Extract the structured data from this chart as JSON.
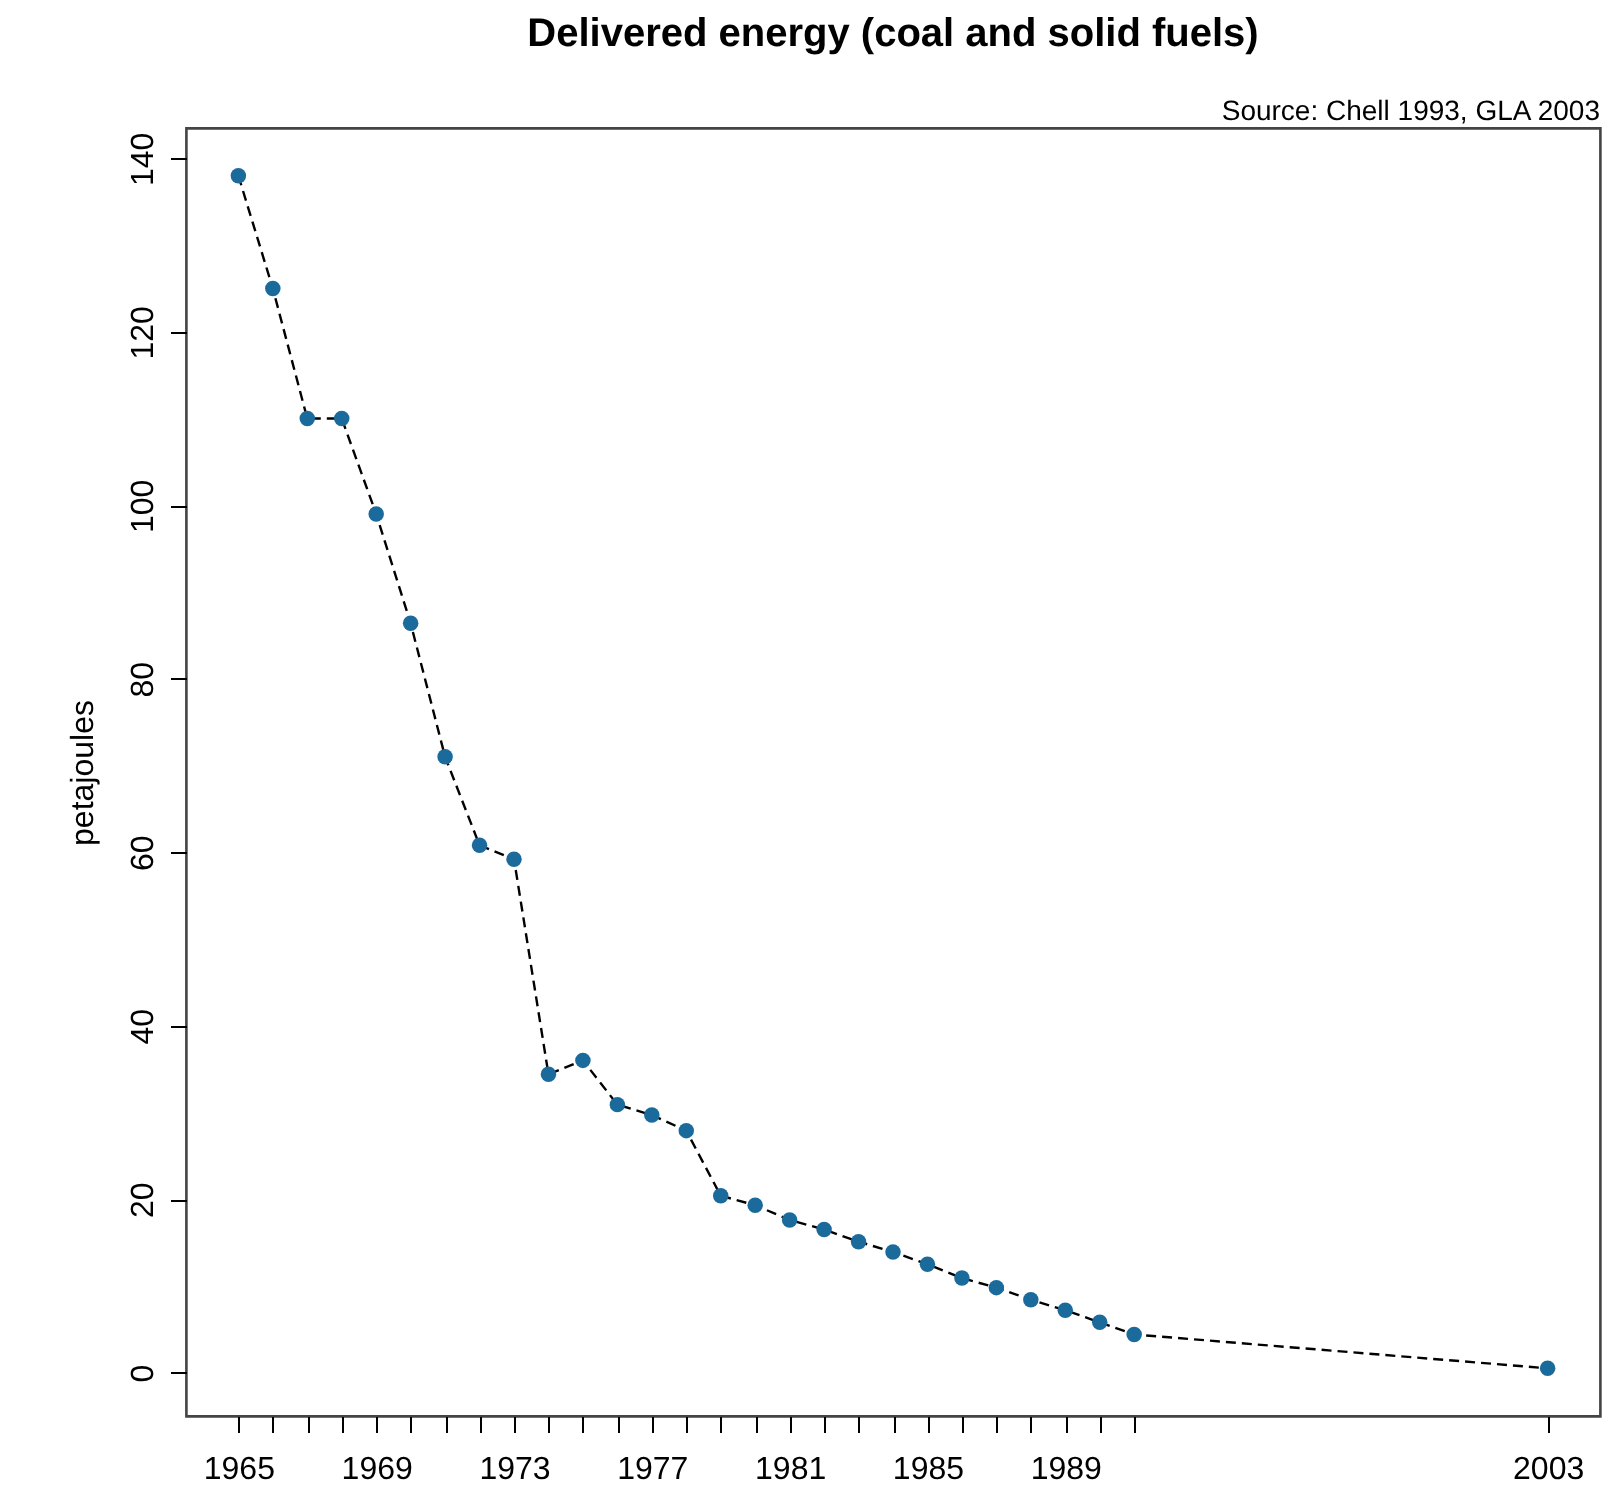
{
  "chart_data": {
    "type": "line",
    "title": "Delivered energy (coal and solid fuels)",
    "ylabel": "petajoules",
    "annotations": [
      "Source: Chell 1993, GLA 2003"
    ],
    "x": [
      1965,
      1966,
      1967,
      1968,
      1969,
      1970,
      1971,
      1972,
      1973,
      1974,
      1975,
      1976,
      1977,
      1978,
      1979,
      1980,
      1981,
      1982,
      1983,
      1984,
      1985,
      1986,
      1987,
      1988,
      1989,
      1990,
      1991,
      2003
    ],
    "series": [
      {
        "color": "#1b6a9c",
        "values": [
          138,
          125,
          110,
          110,
          99,
          86.4,
          71,
          60.8,
          59.2,
          34.4,
          36,
          30.9,
          29.7,
          27.9,
          20.4,
          19.3,
          17.6,
          16.5,
          15.1,
          13.9,
          12.5,
          10.9,
          9.8,
          8.4,
          7.2,
          5.8,
          4.4,
          0.5
        ]
      }
    ],
    "marker": "circle",
    "line_style": "dashed",
    "grid": false,
    "xlim": [
      1963.48,
      2004.52
    ],
    "ylim": [
      -5,
      143.5
    ],
    "xticks": [
      1965,
      {
        "value": 1966,
        "label": null
      },
      {
        "value": 1967,
        "label": null
      },
      {
        "value": 1968,
        "label": null
      },
      1969,
      {
        "value": 1970,
        "label": null
      },
      {
        "value": 1971,
        "label": null
      },
      {
        "value": 1972,
        "label": null
      },
      1973,
      {
        "value": 1974,
        "label": null
      },
      {
        "value": 1975,
        "label": null
      },
      {
        "value": 1976,
        "label": null
      },
      1977,
      {
        "value": 1978,
        "label": null
      },
      {
        "value": 1979,
        "label": null
      },
      {
        "value": 1980,
        "label": null
      },
      1981,
      {
        "value": 1982,
        "label": null
      },
      {
        "value": 1983,
        "label": null
      },
      {
        "value": 1984,
        "label": null
      },
      1985,
      {
        "value": 1986,
        "label": null
      },
      {
        "value": 1987,
        "label": null
      },
      {
        "value": 1988,
        "label": null
      },
      1989,
      {
        "value": 1990,
        "label": null
      },
      {
        "value": 1991,
        "label": null
      },
      2003
    ],
    "yticks": [
      0,
      20,
      40,
      60,
      80,
      100,
      120,
      140
    ]
  }
}
